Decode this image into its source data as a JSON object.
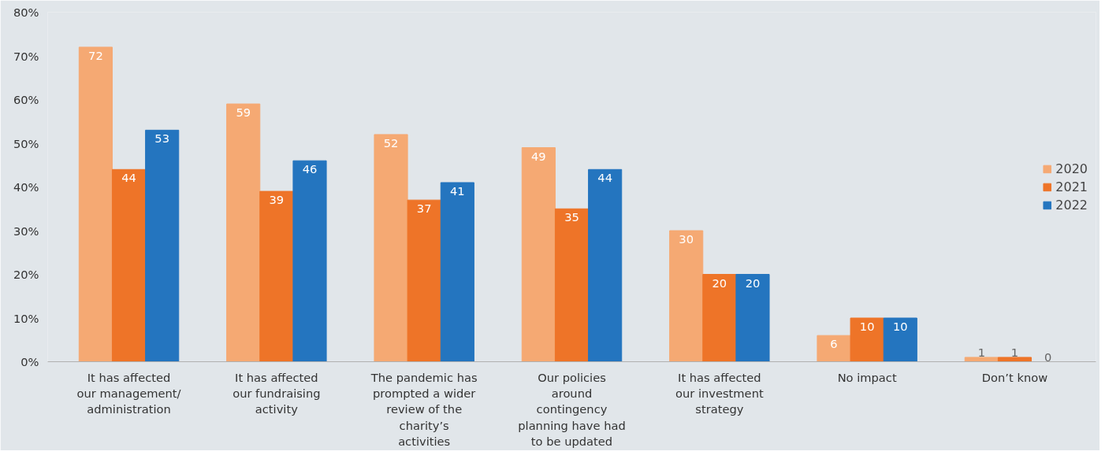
{
  "chart_data": {
    "type": "bar",
    "categories": [
      "It has affected our management/ administration",
      "It has affected our fundraising activity",
      "The pandemic has prompted a wider review of the charity’s activities",
      "Our policies around contingency planning have had to be updated",
      "It has affected our investment strategy",
      "No impact",
      "Don’t know"
    ],
    "series": [
      {
        "name": "2020",
        "color": "#f5a973",
        "values": [
          72,
          59,
          52,
          49,
          30,
          6,
          1
        ]
      },
      {
        "name": "2021",
        "color": "#ee7428",
        "values": [
          44,
          39,
          37,
          35,
          20,
          10,
          1
        ]
      },
      {
        "name": "2022",
        "color": "#2475bf",
        "values": [
          53,
          46,
          41,
          44,
          20,
          10,
          0
        ]
      }
    ],
    "ylim": [
      0,
      80
    ],
    "yticks": [
      {
        "value": 0,
        "label": "0%"
      },
      {
        "value": 10,
        "label": "10%"
      },
      {
        "value": 20,
        "label": "20%"
      },
      {
        "value": 30,
        "label": "30%"
      },
      {
        "value": 40,
        "label": "40%"
      },
      {
        "value": 50,
        "label": "50%"
      },
      {
        "value": 60,
        "label": "60%"
      },
      {
        "value": 70,
        "label": "70%"
      },
      {
        "value": 80,
        "label": "80%"
      }
    ],
    "data_labels": true,
    "legend": "right"
  }
}
